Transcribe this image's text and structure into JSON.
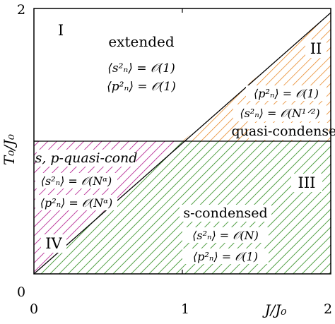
{
  "axes": {
    "ylabel": "T₀/J₀",
    "xlabel": "J/J₀",
    "x_ticks": [
      "0",
      "1",
      "2"
    ],
    "y_ticks": [
      "0",
      "2"
    ]
  },
  "regions": {
    "extended": {
      "numeral": "I",
      "name": "extended",
      "s_relation": "⟨s²ₙ⟩ = 𝒪(1)",
      "p_relation": "⟨p²ₙ⟩ = 𝒪(1)"
    },
    "p_quasi": {
      "numeral": "II",
      "name": "quasi-condensed",
      "p_relation": "⟨p²ₙ⟩ = 𝒪(1)",
      "s_relation": "⟨s²ₙ⟩ = 𝒪(N¹ᐟ²)"
    },
    "s_condensed": {
      "numeral": "III",
      "name": "s-condensed",
      "s_relation": "⟨s²ₙ⟩ = 𝒪(N)",
      "p_relation": "⟨p²ₙ⟩ = 𝒪(1)"
    },
    "sp_quasi": {
      "numeral": "IV",
      "name": "s, p-quasi-cond",
      "s_relation": "⟨s²ₙ⟩ = 𝒪(Nᵅ)",
      "p_relation": "⟨p²ₙ⟩ = 𝒪(Nᵅ)"
    }
  },
  "colors": {
    "orange_hatch": "#e8892a",
    "magenta_hatch": "#b0158a",
    "green_hatch": "#2a8a1a",
    "frame": "#000000"
  }
}
